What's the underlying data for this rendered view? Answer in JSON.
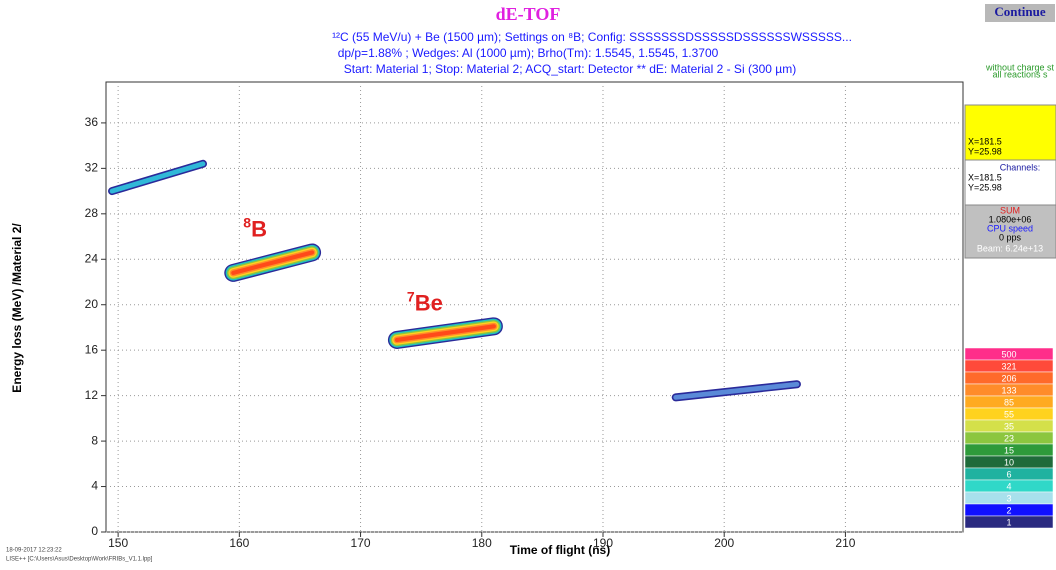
{
  "window": {
    "button": "Continue",
    "note": [
      "without charge st",
      "all reactions s"
    ],
    "cursor": [
      "X=181.5",
      "Y=25.98"
    ],
    "channels_title": "Channels:",
    "channels": [
      "X=181.5",
      "Y=25.98"
    ],
    "sum_title": "SUM",
    "sum_value": "1.080e+06",
    "cpu_title": "CPU speed",
    "cpu_value": "0 pps",
    "beam": "Beam: 6.24e+13",
    "footer": [
      "18-09-2017  12:23:22",
      "LISE++ [C:\\Users\\Asus\\Desktop\\Work\\FRIBs_V1.1.lpp]"
    ]
  },
  "chart_data": {
    "type": "cluster",
    "title": "dE-TOF",
    "subtitle": [
      "¹²C (55 MeV/u) + Be (1500 µm);  Settings on ⁸B;  Config: SSSSSSSDSSSSSDSSSSSSWSSSSS...",
      "dp/p=1.88% ; Wedges: Al (1000 µm); Brho(Tm): 1.5545, 1.5545, 1.3700",
      "Start: Material 1;  Stop: Material 2;  ACQ_start: Detector ** dE: Material 2 - Si (300 µm)"
    ],
    "x_label": "Time of flight (ns)",
    "y_label": "Energy loss (MeV) /Material 2/",
    "xlim": [
      149,
      219.7
    ],
    "ylim": [
      0,
      39.6
    ],
    "xticks": [
      150,
      160,
      170,
      180,
      190,
      200,
      210
    ],
    "yticks": [
      0,
      4,
      8,
      12,
      16,
      20,
      24,
      28,
      32,
      36
    ],
    "grid": true,
    "clusters": [
      {
        "x": [
          149.5,
          157
        ],
        "y": [
          30,
          32.4
        ],
        "colors": [
          "#2a2a9a",
          "#30b8d8"
        ]
      },
      {
        "mass": "8",
        "element": "B",
        "x": [
          159.5,
          166
        ],
        "y": [
          22.8,
          24.6
        ],
        "colors": [
          "#2a2a9a",
          "#20c0c0",
          "#8cc63f",
          "#ffd21e",
          "#ff8c2a",
          "#ff4a1a"
        ]
      },
      {
        "mass": "7",
        "element": "Be",
        "x": [
          173,
          181
        ],
        "y": [
          16.9,
          18.1
        ],
        "colors": [
          "#2a2a9a",
          "#20c0c0",
          "#8cc63f",
          "#ffd21e",
          "#ff8c2a",
          "#ff4a1a"
        ]
      },
      {
        "x": [
          196,
          206
        ],
        "y": [
          11.85,
          13
        ],
        "colors": [
          "#2a2a9a",
          "#5a8ad8"
        ]
      }
    ],
    "color_scale": [
      {
        "value": 500,
        "color": "#ff2e8a"
      },
      {
        "value": 321,
        "color": "#ff4a3a"
      },
      {
        "value": 206,
        "color": "#ff6a2a"
      },
      {
        "value": 133,
        "color": "#ff8c2a"
      },
      {
        "value": 85,
        "color": "#ffaa20"
      },
      {
        "value": 55,
        "color": "#ffd21e"
      },
      {
        "value": 35,
        "color": "#d4e04a"
      },
      {
        "value": 23,
        "color": "#8cc63f"
      },
      {
        "value": 15,
        "color": "#2e9a3a"
      },
      {
        "value": 10,
        "color": "#1f6b3a"
      },
      {
        "value": 6,
        "color": "#20b2a0"
      },
      {
        "value": 4,
        "color": "#30d8c8"
      },
      {
        "value": 3,
        "color": "#a8e0ec"
      },
      {
        "value": 2,
        "color": "#1010ff"
      },
      {
        "value": 1,
        "color": "#2a2a80"
      }
    ]
  }
}
